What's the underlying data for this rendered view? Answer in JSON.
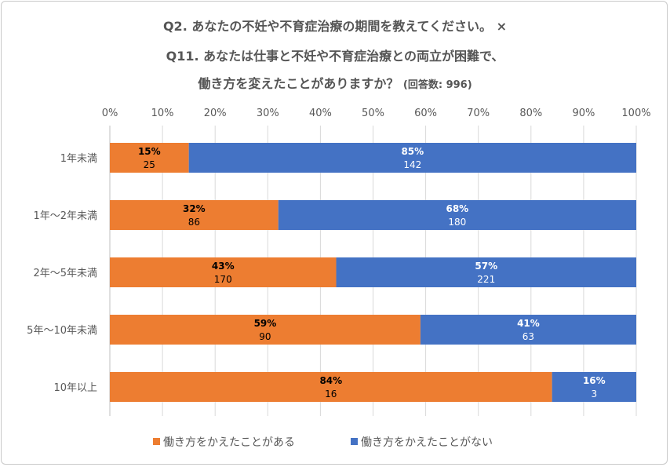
{
  "title": {
    "line1": "Q2. あなたの不妊や不育症治療の期間を教えてください。 ×",
    "line2": "Q11. あなたは仕事と不妊や不育症治療との両立が困難で、",
    "line3_main": "働き方を変えたことがありますか？",
    "line3_note": "(回答数: 996)"
  },
  "colors": {
    "series1": "#ED7D31",
    "series2": "#4472C4",
    "grid": "#D9D9D9",
    "axis_text": "#595959"
  },
  "chart_data": {
    "type": "bar",
    "orientation": "horizontal",
    "stacked": "percent",
    "categories": [
      "1年未満",
      "1年〜2年未満",
      "2年〜5年未満",
      "5年〜10年未満",
      "10年以上"
    ],
    "series": [
      {
        "name": "働き方をかえたことがある",
        "percent_labels": [
          "15%",
          "32%",
          "43%",
          "59%",
          "84%"
        ],
        "percent_values": [
          15,
          32,
          43,
          59,
          84
        ],
        "counts": [
          "25",
          "86",
          "170",
          "90",
          "16"
        ]
      },
      {
        "name": "働き方をかえたことがない",
        "percent_labels": [
          "85%",
          "68%",
          "57%",
          "41%",
          "16%"
        ],
        "percent_values": [
          85,
          68,
          57,
          41,
          16
        ],
        "counts": [
          "142",
          "180",
          "221",
          "63",
          "3"
        ]
      }
    ],
    "xlim": [
      0,
      100
    ],
    "x_ticks": [
      "0%",
      "10%",
      "20%",
      "30%",
      "40%",
      "50%",
      "60%",
      "70%",
      "80%",
      "90%",
      "100%"
    ],
    "grid": true,
    "legend_position": "bottom"
  }
}
